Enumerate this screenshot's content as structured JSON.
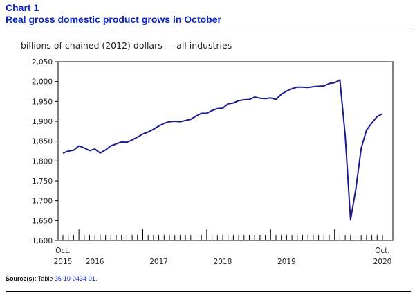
{
  "header": {
    "chart_number": "Chart 1",
    "title": "Real gross domestic product grows in October"
  },
  "source": {
    "label": "Source(s):",
    "text": "Table ",
    "table_link": "36-10-0434-01",
    "end": "."
  },
  "colors": {
    "title": "#0b24c8",
    "line": "#1a1a8c"
  },
  "chart_data": {
    "type": "line",
    "title": "Real gross domestic product grows in October",
    "ylabel": "billions of chained (2012) dollars — all industries",
    "xlabel": "",
    "ylim": [
      1600,
      2050
    ],
    "yticks": [
      1600,
      1650,
      1700,
      1750,
      1800,
      1850,
      1900,
      1950,
      2000,
      2050
    ],
    "ytick_labels": [
      "1,600",
      "1,650",
      "1,700",
      "1,750",
      "1,800",
      "1,850",
      "1,900",
      "1,950",
      "2,000",
      "2,050"
    ],
    "xlabels": [
      {
        "index": 0,
        "top": "Oct.",
        "bottom": "2015"
      },
      {
        "index": 6,
        "top": "",
        "bottom": "2016"
      },
      {
        "index": 18,
        "top": "",
        "bottom": "2017"
      },
      {
        "index": 30,
        "top": "",
        "bottom": "2018"
      },
      {
        "index": 42,
        "top": "",
        "bottom": "2019"
      },
      {
        "index": 60,
        "top": "Oct.",
        "bottom": "2020"
      }
    ],
    "year_boundaries": [
      3,
      15,
      27,
      39,
      51
    ],
    "series": [
      {
        "name": "All industries",
        "start": "2015-10",
        "values": [
          1820,
          1825,
          1827,
          1838,
          1833,
          1826,
          1830,
          1820,
          1828,
          1838,
          1843,
          1848,
          1847,
          1853,
          1860,
          1868,
          1873,
          1880,
          1888,
          1895,
          1899,
          1900,
          1899,
          1902,
          1905,
          1913,
          1920,
          1920,
          1927,
          1932,
          1933,
          1944,
          1946,
          1952,
          1954,
          1955,
          1961,
          1958,
          1957,
          1959,
          1955,
          1968,
          1976,
          1982,
          1986,
          1986,
          1985,
          1987,
          1988,
          1989,
          1995,
          1997,
          2004,
          1864,
          1652,
          1730,
          1832,
          1878,
          1896,
          1912,
          1919
        ]
      }
    ]
  }
}
